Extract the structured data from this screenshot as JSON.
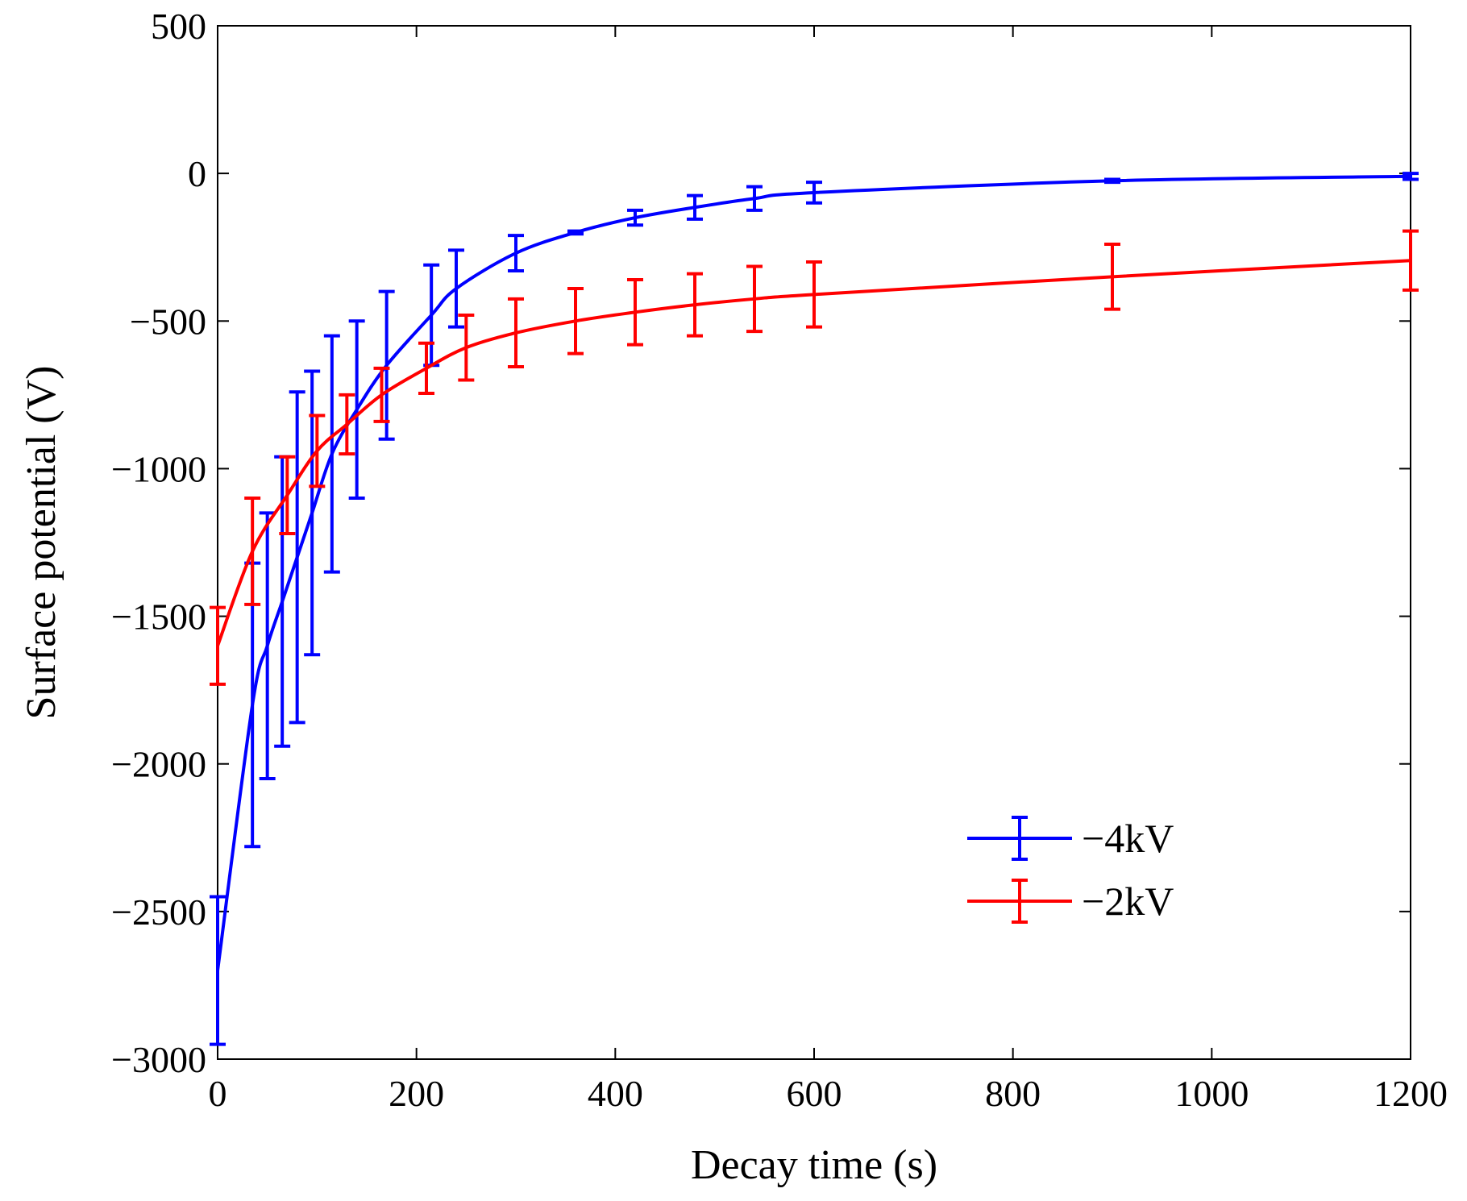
{
  "chart_data": {
    "type": "line",
    "title": "",
    "xlabel": "Decay time (s)",
    "ylabel": "Surface potential (V)",
    "xlim": [
      0,
      1200
    ],
    "ylim": [
      -3000,
      500
    ],
    "xticks": [
      0,
      200,
      400,
      600,
      800,
      1000,
      1200
    ],
    "yticks": [
      500,
      0,
      -500,
      -1000,
      -1500,
      -2000,
      -2500,
      -3000
    ],
    "xtick_labels": [
      "0",
      "200",
      "400",
      "600",
      "800",
      "1000",
      "1200"
    ],
    "ytick_labels": [
      "500",
      "0",
      "−500",
      "−1000",
      "−1500",
      "−2000",
      "−2500",
      "−3000"
    ],
    "grid": false,
    "legend_position": "lower-right",
    "series": [
      {
        "name": "−4kV",
        "color": "#0000ff",
        "x": [
          0,
          35,
          50,
          65,
          80,
          95,
          115,
          140,
          170,
          215,
          240,
          300,
          360,
          420,
          480,
          540,
          600,
          900,
          1200
        ],
        "y": [
          -2700,
          -1800,
          -1600,
          -1450,
          -1300,
          -1150,
          -950,
          -800,
          -650,
          -480,
          -390,
          -270,
          -200,
          -150,
          -115,
          -85,
          -65,
          -25,
          -10
        ],
        "err": [
          250,
          480,
          450,
          490,
          560,
          480,
          400,
          300,
          250,
          170,
          130,
          60,
          5,
          25,
          40,
          40,
          35,
          5,
          10
        ]
      },
      {
        "name": "−2kV",
        "color": "#ff0000",
        "x": [
          0,
          35,
          70,
          100,
          130,
          165,
          210,
          250,
          300,
          360,
          420,
          480,
          540,
          600,
          900,
          1200
        ],
        "y": [
          -1600,
          -1280,
          -1090,
          -940,
          -850,
          -750,
          -660,
          -590,
          -540,
          -500,
          -470,
          -445,
          -425,
          -410,
          -350,
          -295
        ],
        "err": [
          130,
          180,
          130,
          120,
          100,
          90,
          85,
          110,
          115,
          110,
          110,
          105,
          110,
          110,
          110,
          100
        ]
      }
    ]
  }
}
